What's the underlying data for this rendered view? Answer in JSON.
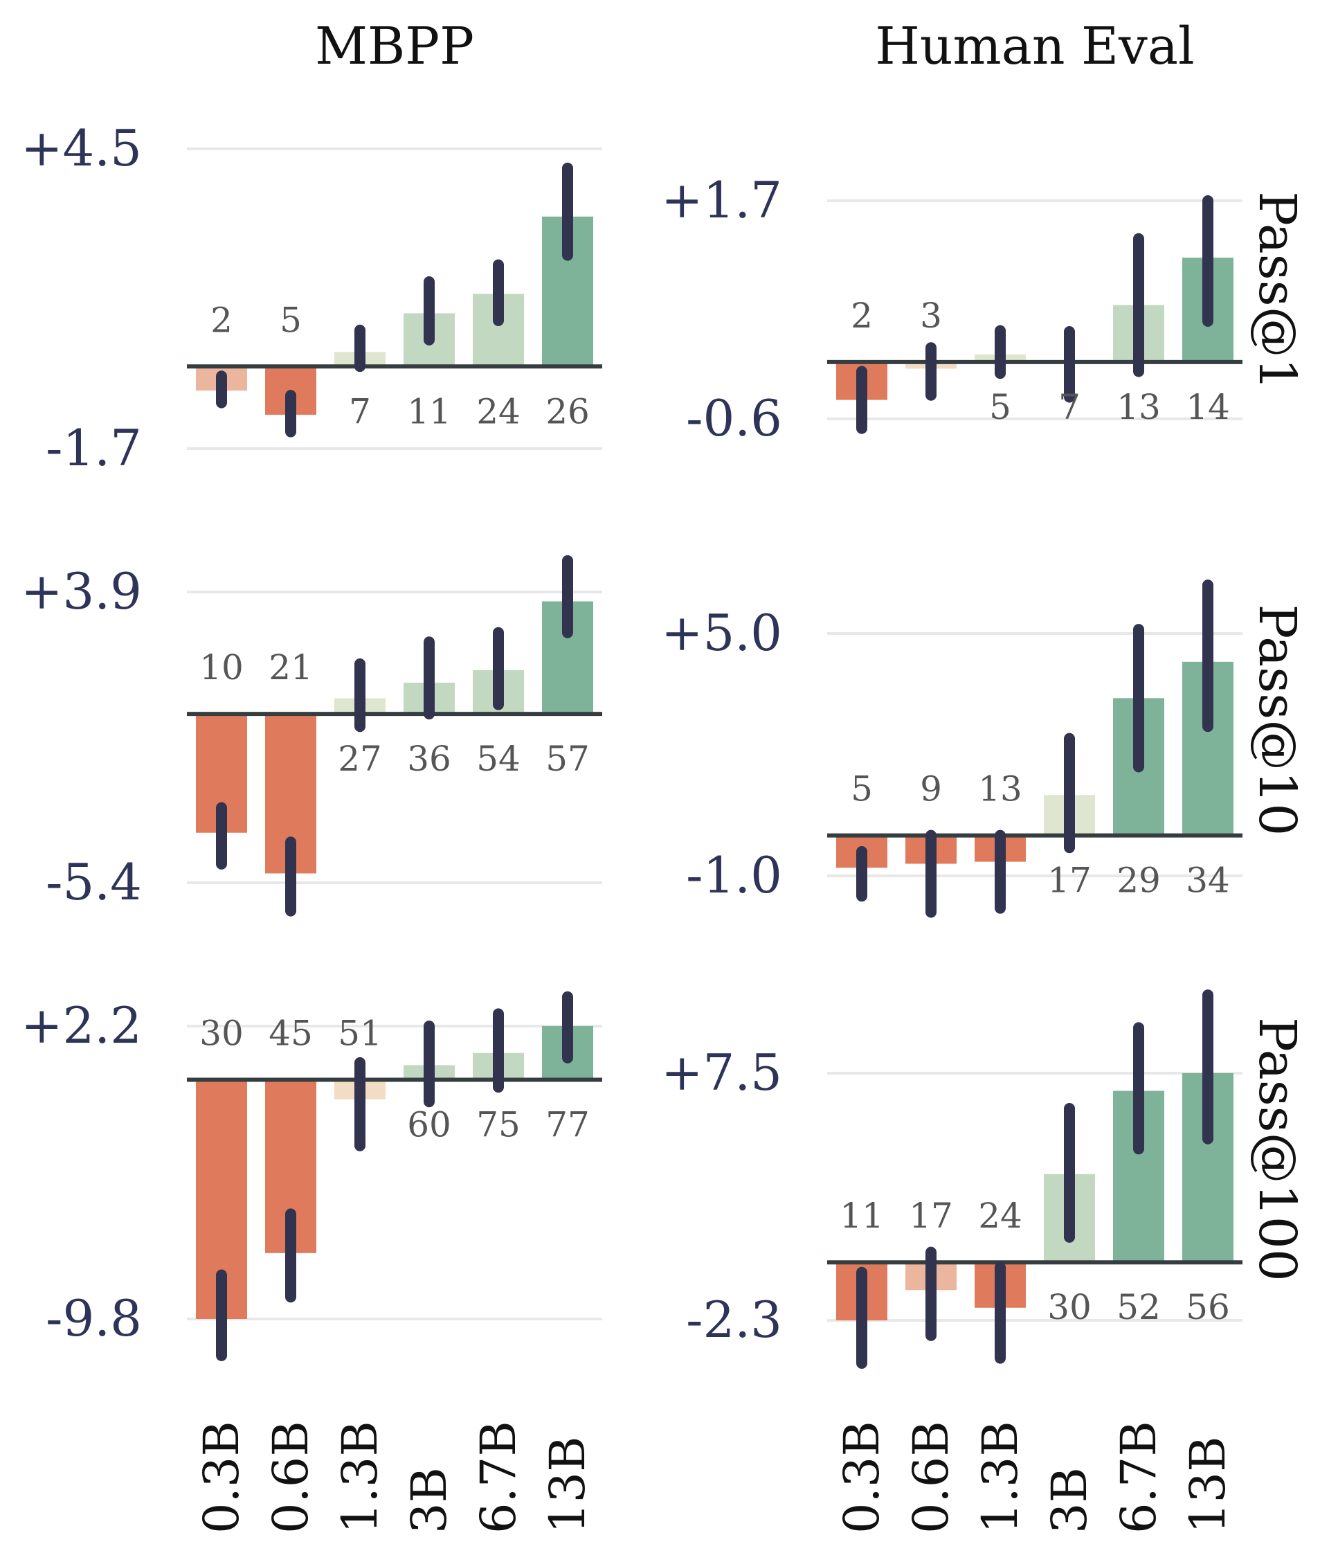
{
  "chart_data": [
    {
      "type": "bar",
      "row": "Pass@1",
      "column": "MBPP",
      "categories": [
        "0.3B",
        "0.6B",
        "1.3B",
        "3B",
        "6.7B",
        "13B"
      ],
      "values": [
        -0.5,
        -1.0,
        0.3,
        1.1,
        1.5,
        3.1
      ],
      "error_low": [
        -0.75,
        -1.35,
        0.0,
        0.55,
        0.95,
        2.3
      ],
      "error_high": [
        -0.2,
        -0.6,
        0.75,
        1.75,
        2.1,
        4.1
      ],
      "bar_labels": [
        "2",
        "5",
        "7",
        "11",
        "24",
        "26"
      ],
      "yticks": [
        4.5,
        -1.7
      ],
      "ytick_labels": [
        "+4.5",
        "-1.7"
      ],
      "ylim": [
        -1.7,
        4.5
      ]
    },
    {
      "type": "bar",
      "row": "Pass@1",
      "column": "Human Eval",
      "categories": [
        "0.3B",
        "0.6B",
        "1.3B",
        "3B",
        "6.7B",
        "13B"
      ],
      "values": [
        -0.4,
        -0.07,
        0.08,
        0.0,
        0.6,
        1.1
      ],
      "error_low": [
        -0.7,
        -0.35,
        -0.12,
        -0.37,
        -0.1,
        0.43
      ],
      "error_high": [
        -0.1,
        0.15,
        0.33,
        0.32,
        1.3,
        1.7
      ],
      "bar_labels": [
        "2",
        "3",
        "5",
        "7",
        "13",
        "14"
      ],
      "yticks": [
        1.7,
        -0.6
      ],
      "ytick_labels": [
        "+1.7",
        "-0.6"
      ],
      "ylim": [
        -0.6,
        1.7
      ]
    },
    {
      "type": "bar",
      "row": "Pass@10",
      "column": "MBPP",
      "categories": [
        "0.3B",
        "0.6B",
        "1.3B",
        "3B",
        "6.7B",
        "13B"
      ],
      "values": [
        -3.8,
        -5.1,
        0.5,
        1.0,
        1.4,
        3.6
      ],
      "error_low": [
        -4.8,
        -6.3,
        -0.4,
        0.0,
        0.3,
        2.6
      ],
      "error_high": [
        -3.0,
        -4.1,
        1.6,
        2.3,
        2.6,
        4.9
      ],
      "bar_labels": [
        "10",
        "21",
        "27",
        "36",
        "54",
        "57"
      ],
      "yticks": [
        3.9,
        -5.4
      ],
      "ytick_labels": [
        "+3.9",
        "-5.4"
      ],
      "ylim": [
        -5.4,
        3.9
      ]
    },
    {
      "type": "bar",
      "row": "Pass@10",
      "column": "Human Eval",
      "categories": [
        "0.3B",
        "0.6B",
        "1.3B",
        "3B",
        "6.7B",
        "13B"
      ],
      "values": [
        -0.8,
        -0.7,
        -0.65,
        1.0,
        3.4,
        4.3
      ],
      "error_low": [
        -1.5,
        -1.9,
        -1.8,
        -0.3,
        1.7,
        2.7
      ],
      "error_high": [
        -0.4,
        0.0,
        0.0,
        2.4,
        5.1,
        6.2
      ],
      "bar_labels": [
        "5",
        "9",
        "13",
        "17",
        "29",
        "34"
      ],
      "yticks": [
        5.0,
        -1.0
      ],
      "ytick_labels": [
        "+5.0",
        "-1.0"
      ],
      "ylim": [
        -1.0,
        5.0
      ]
    },
    {
      "type": "bar",
      "row": "Pass@100",
      "column": "MBPP",
      "categories": [
        "0.3B",
        "0.6B",
        "1.3B",
        "3B",
        "6.7B",
        "13B"
      ],
      "values": [
        -9.8,
        -7.1,
        -0.8,
        0.6,
        1.1,
        2.2
      ],
      "error_low": [
        -11.3,
        -8.9,
        -2.7,
        -0.9,
        -0.3,
        0.9
      ],
      "error_high": [
        -8.0,
        -5.5,
        0.7,
        2.2,
        2.7,
        3.4
      ],
      "bar_labels": [
        "30",
        "45",
        "51",
        "60",
        "75",
        "77"
      ],
      "yticks": [
        2.2,
        -9.8
      ],
      "ytick_labels": [
        "+2.2",
        "-9.8"
      ],
      "ylim": [
        -9.8,
        2.2
      ]
    },
    {
      "type": "bar",
      "row": "Pass@100",
      "column": "Human Eval",
      "categories": [
        "0.3B",
        "0.6B",
        "1.3B",
        "3B",
        "6.7B",
        "13B"
      ],
      "values": [
        -2.3,
        -1.1,
        -1.8,
        3.5,
        6.8,
        7.5
      ],
      "error_low": [
        -4.0,
        -2.9,
        -3.8,
        1.0,
        4.5,
        4.9
      ],
      "error_high": [
        -0.4,
        0.4,
        -0.2,
        6.1,
        9.3,
        10.6
      ],
      "bar_labels": [
        "11",
        "17",
        "24",
        "30",
        "52",
        "56"
      ],
      "yticks": [
        7.5,
        -2.3
      ],
      "ytick_labels": [
        "+7.5",
        "-2.3"
      ],
      "ylim": [
        -2.3,
        7.5
      ]
    }
  ],
  "column_titles": [
    "MBPP",
    "Human Eval"
  ],
  "row_labels": [
    "Pass@1",
    "Pass@10",
    "Pass@100"
  ],
  "colors": {
    "neg_strong": "#e07a5c",
    "neg_mid": "#ebb59e",
    "neg_light": "#f2dcc4",
    "pos_light": "#dfe6cf",
    "pos_mid": "#c3d8c0",
    "pos_strong": "#7fb399",
    "error_bar": "#31334f",
    "zero_line": "#363d40",
    "tick_text": "#2e3358",
    "label_text": "#555555"
  }
}
